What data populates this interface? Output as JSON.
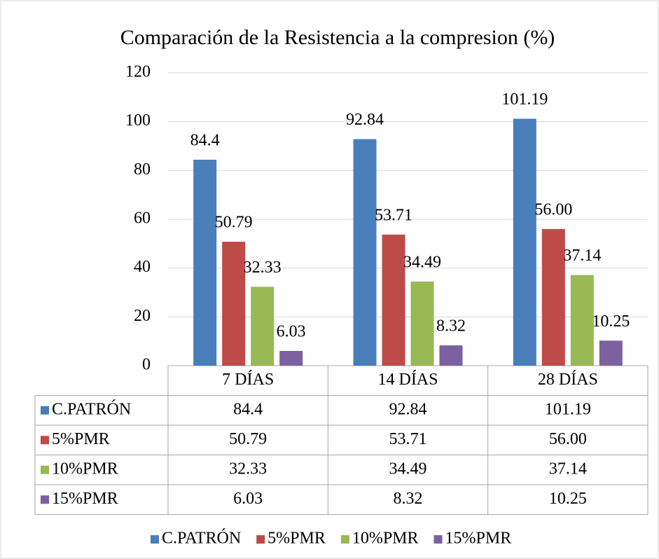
{
  "chart_data": {
    "type": "bar",
    "title": "Comparación de la Resistencia a la compresion (%)",
    "categories": [
      "7 DÍAS",
      "14 DÍAS",
      "28 DÍAS"
    ],
    "series": [
      {
        "name": "C.PATRÓN",
        "color": "#4a7ebb",
        "values": [
          84.4,
          92.84,
          101.19
        ]
      },
      {
        "name": "5%PMR",
        "color": "#be4b48",
        "values": [
          50.79,
          53.71,
          56.0
        ],
        "value_labels": [
          "50.79",
          "53.71",
          "56.00"
        ]
      },
      {
        "name": "10%PMR",
        "color": "#98b954",
        "values": [
          32.33,
          34.49,
          37.14
        ]
      },
      {
        "name": "15%PMR",
        "color": "#7d60a0",
        "values": [
          6.03,
          8.32,
          10.25
        ]
      }
    ],
    "ylim": [
      0,
      120
    ],
    "yticks": [
      0,
      20,
      40,
      60,
      80,
      100,
      120
    ],
    "grid": true,
    "legend": "bottom"
  }
}
